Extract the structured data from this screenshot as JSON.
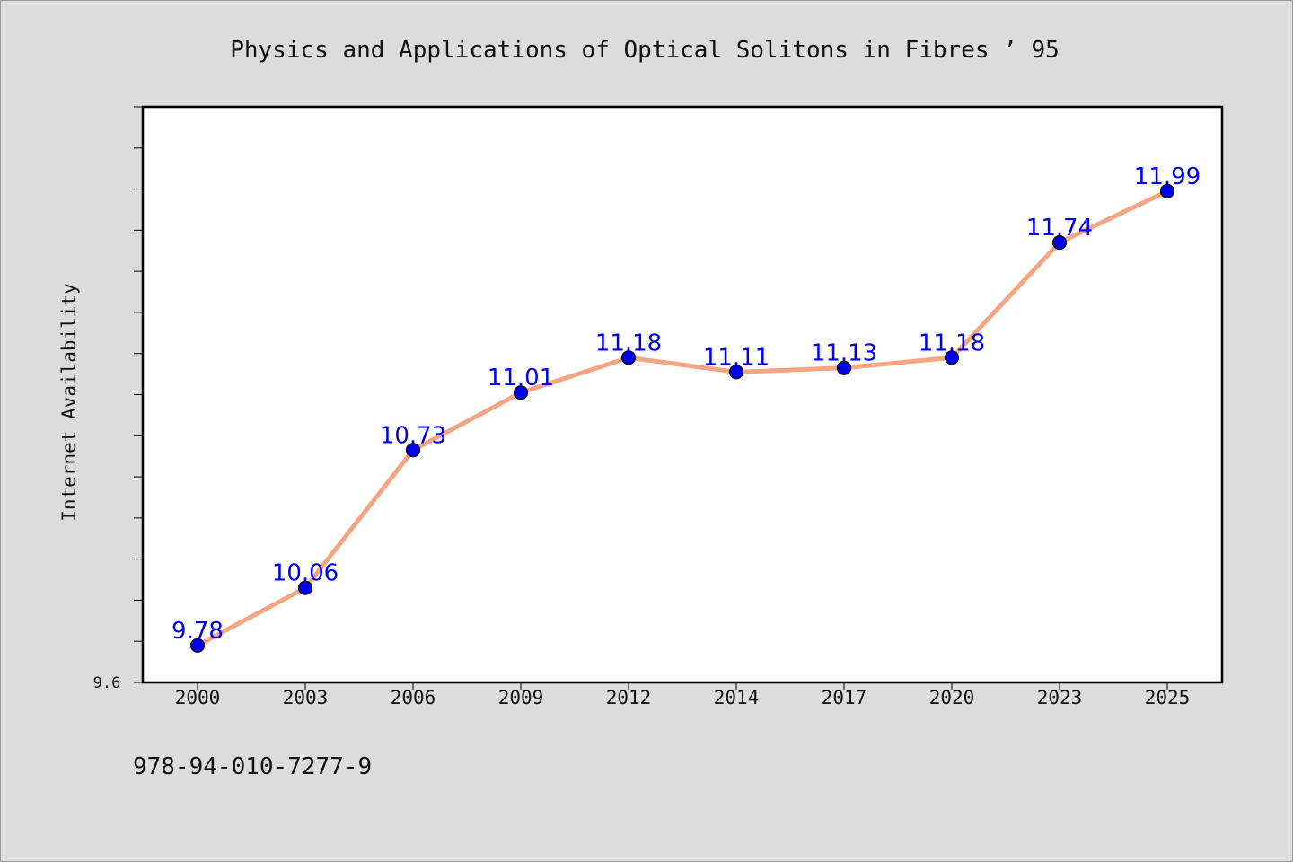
{
  "chart_data": {
    "type": "line",
    "title": "Physics and Applications of Optical Solitons in Fibres ’ 95",
    "ylabel": "Internet Availability",
    "xlabel": "",
    "categories": [
      "2000",
      "2003",
      "2006",
      "2009",
      "2012",
      "2014",
      "2017",
      "2020",
      "2023",
      "2025"
    ],
    "series": [
      {
        "values": [
          9.78,
          10.06,
          10.73,
          11.01,
          11.18,
          11.11,
          11.13,
          11.18,
          11.74,
          11.99
        ],
        "line_color": "#f4a582",
        "marker_color": "#0000ee",
        "label_color": "#0000ee"
      }
    ],
    "ylim": [
      9.6,
      12.4
    ],
    "ytick_labels": [
      "9.6"
    ],
    "grid": false,
    "footer": "978-94-010-7277-9"
  }
}
